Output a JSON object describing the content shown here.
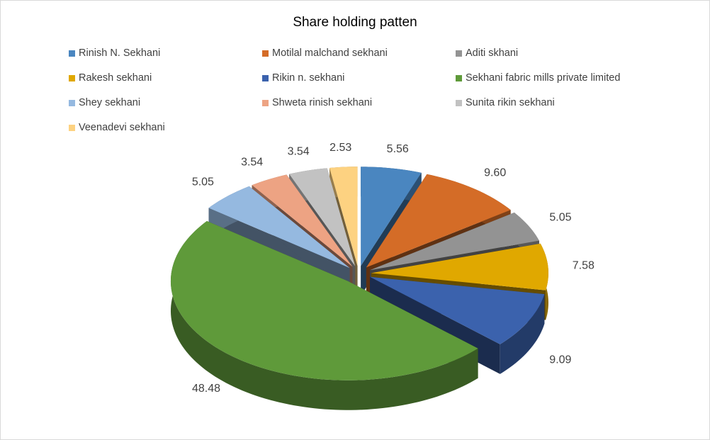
{
  "chart_data": {
    "type": "pie",
    "title": "Share holding patten",
    "legend_position": "top",
    "categories": [
      "Rinish N. Sekhani",
      "Motilal malchand sekhani",
      "Aditi skhani",
      "Rakesh sekhani",
      "Rikin n. sekhani",
      "Sekhani fabric mills private limited",
      "Shey sekhani",
      "Shweta rinish sekhani",
      "Sunita rikin sekhani",
      "Veenadevi sekhani"
    ],
    "values": [
      5.56,
      9.6,
      5.05,
      7.58,
      9.09,
      48.48,
      5.05,
      3.54,
      3.54,
      2.53
    ],
    "data_labels": [
      "5.56",
      "9.60",
      "5.05",
      "7.58",
      "9.09",
      "48.48",
      "5.05",
      "3.54",
      "3.54",
      "2.53"
    ],
    "colors": [
      "#4a86c0",
      "#d46c27",
      "#939393",
      "#e0a800",
      "#3b62ad",
      "#5f9a3a",
      "#95b9e0",
      "#eda383",
      "#c2c2c2",
      "#fdd281"
    ]
  }
}
